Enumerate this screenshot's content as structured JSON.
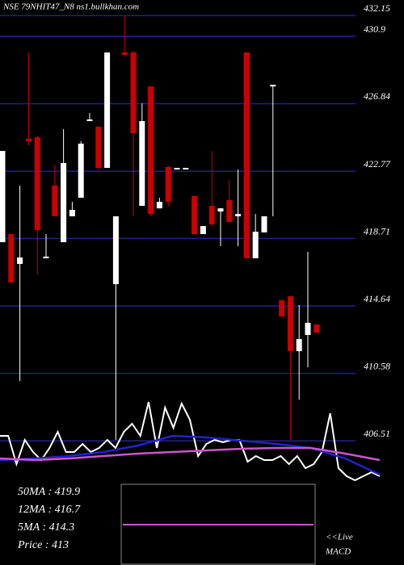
{
  "chart_data": {
    "type": "candlestick",
    "title": "NSE 79NHIT47_N8 ns1.bullkhan.com",
    "ylim": [
      399.03,
      433.09
    ],
    "yticks": [
      432.15,
      430.9,
      426.84,
      422.77,
      418.71,
      414.64,
      410.58,
      406.51
    ],
    "grid": true,
    "grid_color": "#22228c",
    "up_color": "#ffffff",
    "down_color": "#cc0000",
    "open": [
      418.49,
      418.98,
      417.18,
      424.72,
      424.82,
      417.52,
      421.9,
      418.49,
      420.05,
      421.17,
      425.79,
      425.45,
      422.97,
      415.96,
      429.93,
      429.93,
      420.68,
      427.88,
      420.53,
      423.02,
      422.97,
      422.97,
      421.27,
      418.98,
      420.68,
      420.34,
      421.02,
      420.05,
      429.93,
      417.52,
      419.08,
      427.88,
      414.99,
      415.23,
      411.92,
      412.9,
      413.53
    ],
    "high": [
      423.99,
      418.98,
      421.9,
      429.93,
      424.91,
      418.98,
      423.11,
      425.3,
      420.92,
      424.57,
      426.28,
      425.45,
      429.93,
      420.05,
      432.12,
      430.02,
      426.86,
      427.88,
      421.17,
      423.11,
      422.97,
      422.97,
      421.27,
      419.46,
      423.99,
      420.53,
      422.24,
      422.87,
      429.93,
      420.19,
      420.05,
      427.98,
      414.99,
      415.23,
      414.7,
      417.91,
      413.53
    ],
    "low": [
      418.49,
      416.06,
      410.12,
      424.33,
      416.54,
      417.52,
      420.05,
      418.49,
      420.05,
      421.17,
      425.79,
      422.87,
      422.97,
      406.57,
      429.78,
      420.05,
      420.68,
      420.05,
      420.53,
      420.63,
      422.97,
      422.97,
      418.98,
      418.98,
      419.46,
      418.25,
      419.71,
      418.25,
      417.52,
      417.52,
      419.08,
      420.05,
      414.01,
      406.57,
      409.0,
      410.95,
      413.04
    ],
    "close": [
      423.99,
      416.06,
      417.57,
      424.57,
      419.22,
      417.62,
      420.05,
      423.26,
      420.44,
      424.43,
      425.89,
      422.97,
      429.93,
      420.05,
      429.78,
      425.06,
      425.79,
      420.19,
      420.92,
      420.92,
      422.97,
      422.97,
      418.98,
      419.46,
      419.56,
      420.53,
      419.71,
      420.19,
      417.52,
      419.12,
      420.05,
      427.98,
      414.01,
      411.92,
      412.65,
      413.63,
      413.04
    ],
    "indicator": {
      "ylim": [
        0,
        100
      ],
      "series": [
        {
          "color": "#ffffff",
          "values": [
            54.5,
            54.5,
            22.7,
            50,
            36.4,
            27.3,
            40.9,
            59.1,
            36.4,
            36.4,
            45.5,
            36.4,
            40.9,
            50,
            40.9,
            59.1,
            68.2,
            54.5,
            92.7,
            40.9,
            86.4,
            63.6,
            90.9,
            72.7,
            31.8,
            45.5,
            50,
            47.3,
            50,
            50,
            25.5,
            31.8,
            27.3,
            27.3,
            31.8,
            22.7,
            31.8,
            18.2,
            22.7,
            36.4,
            80,
            18.2,
            9.1,
            4.5,
            9.1,
            13.6,
            9.1
          ]
        },
        {
          "color": "#2222cc",
          "values": [
            27.3,
            29.1,
            31.8,
            36.4,
            43.6,
            54.5,
            52.7,
            49.1,
            45.5,
            40.9,
            29.1,
            10.9
          ]
        },
        {
          "color": "#cc55cc",
          "values": [
            29.1,
            27.3,
            29.1,
            31.8,
            34.5,
            36.4,
            38.2,
            40,
            40.9,
            40.9,
            34.5,
            27.3
          ]
        }
      ]
    },
    "legend_texts": [
      "50MA : 419.9",
      "12MA : 416.7",
      "5MA : 414.3",
      "Price   : 413"
    ],
    "live_label": "<<Live",
    "macd_label": "MACD"
  }
}
